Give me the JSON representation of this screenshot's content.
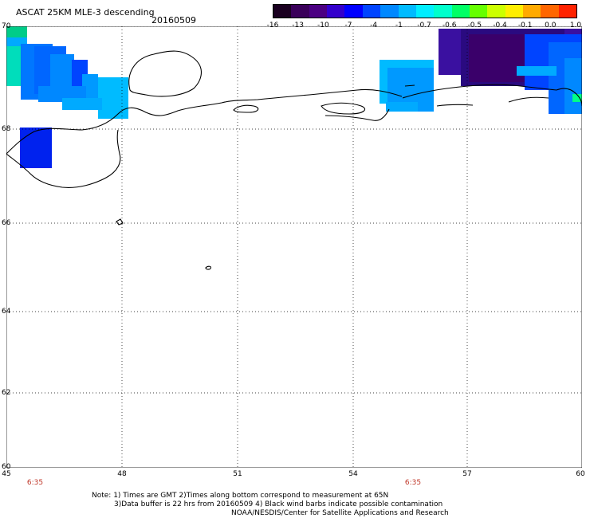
{
  "title": "ASCAT 25KM MLE-3 descending",
  "date": "20160509",
  "colorbar": {
    "colors": [
      "#1a0020",
      "#3a005a",
      "#4b0082",
      "#3300cc",
      "#0000ff",
      "#0044ff",
      "#0088ff",
      "#00bbff",
      "#00eeff",
      "#00ffcc",
      "#00ff66",
      "#66ff00",
      "#ccff00",
      "#ffee00",
      "#ffaa00",
      "#ff6600",
      "#ff2200"
    ],
    "labels": [
      "-16",
      "-13",
      "-10",
      "-7",
      "-4",
      "-1",
      "-0.7",
      "-0.6",
      "-0.5",
      "-0.4",
      "-0.1",
      "0.0",
      "1.0"
    ]
  },
  "axes": {
    "lat_labels": [
      "70",
      "68",
      "66",
      "64",
      "62",
      "60"
    ],
    "lon_labels": [
      "45",
      "48",
      "51",
      "54",
      "57",
      "60"
    ]
  },
  "time_labels": [
    "6:35",
    "6:35"
  ],
  "notes": {
    "line1": "Note: 1) Times are GMT 2)Times along bottom correspond to measurement at 65N",
    "line2": "3)Data buffer is 22 hrs from 20160509 4) Black wind barbs indicate possible contamination",
    "line3": "NOAA/NESDIS/Center for Satellite Applications and Research"
  }
}
